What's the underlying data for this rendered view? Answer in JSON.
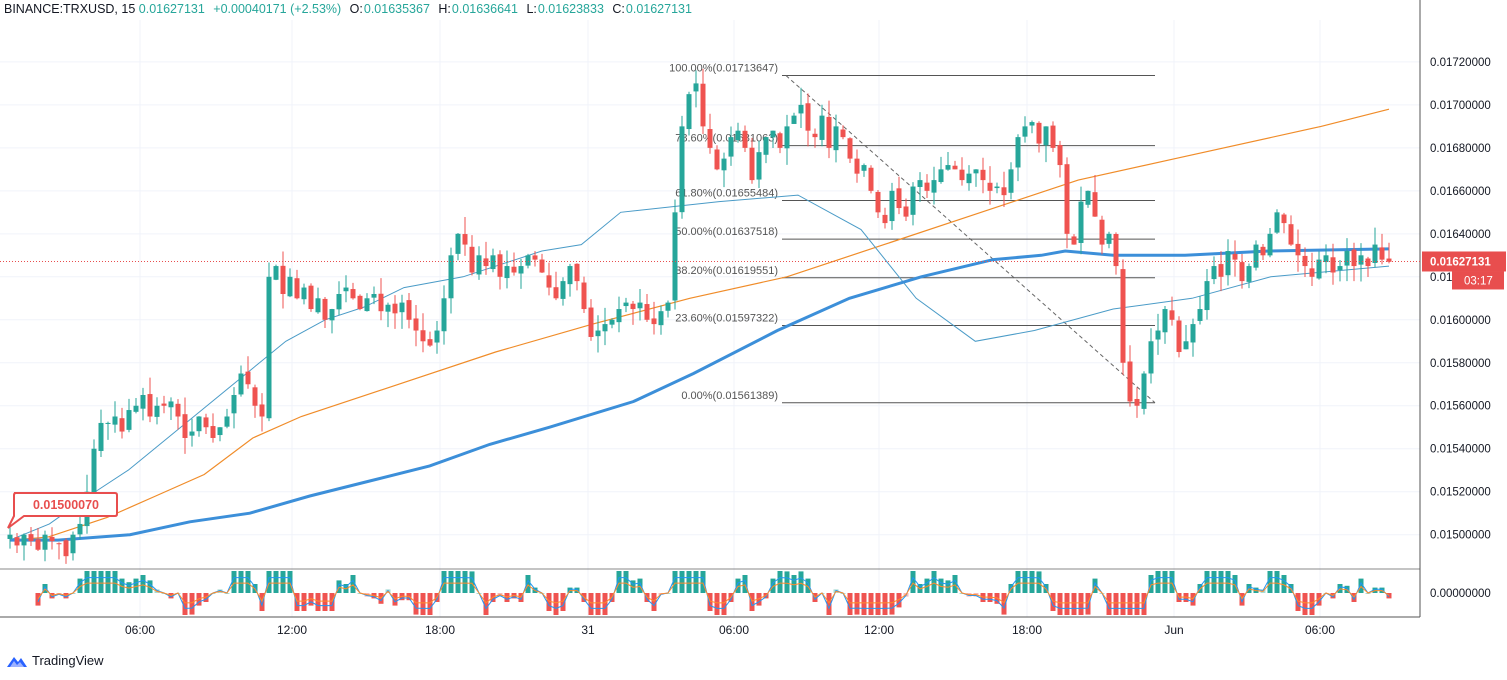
{
  "header": {
    "symbol": "BINANCE:TRXUSD, 15",
    "price": "0.01627131",
    "change": "+0.00040171 (+2.53%)",
    "open_label": "O:",
    "open": "0.01635367",
    "high_label": "H:",
    "high": "0.01636641",
    "low_label": "L:",
    "low": "0.01623833",
    "close_label": "C:",
    "close": "0.01627131"
  },
  "brand": {
    "name": "TradingView"
  },
  "colors": {
    "up": "#26a69a",
    "down": "#ef5350",
    "ma_fast": "#4a9bc7",
    "ma_slow": "#f08c29",
    "ma_long": "#3c8fd9",
    "price_label": "#e84e4e",
    "macd_line": "#2196f3",
    "signal_line": "#ff8a2b"
  },
  "chart_data": {
    "type": "candlestick",
    "x_tick_labels": [
      "06:00",
      "12:00",
      "18:00",
      "31",
      "06:00",
      "12:00",
      "18:00",
      "Jun",
      "06:00"
    ],
    "y_tick_labels": [
      "0.01720000",
      "0.01700000",
      "0.01680000",
      "0.01660000",
      "0.01640000",
      "0.01620000",
      "0.01600000",
      "0.01580000",
      "0.01560000",
      "0.01540000",
      "0.01520000",
      "0.01500000"
    ],
    "y_ticks": [
      0.0172,
      0.017,
      0.0168,
      0.0166,
      0.0164,
      0.0162,
      0.016,
      0.0158,
      0.0156,
      0.0154,
      0.0152,
      0.015
    ],
    "ylim": [
      0.014845,
      0.017395
    ],
    "macd_tick_label": "0.00000000",
    "current_price_label": "0.01627131",
    "countdown": "03:17",
    "start_price_label": "0.01500070",
    "fib_levels": [
      {
        "label": "100.00%(0.01713647)",
        "price": 0.01713647
      },
      {
        "label": "78.60%(0.01681063)",
        "price": 0.01681063
      },
      {
        "label": "61.80%(0.01655484)",
        "price": 0.01655484
      },
      {
        "label": "50.00%(0.01637518)",
        "price": 0.01637518
      },
      {
        "label": "38.20%(0.01619551)",
        "price": 0.01619551
      },
      {
        "label": "23.60%(0.01597322)",
        "price": 0.01597322
      },
      {
        "label": "0.00%(0.01561389)",
        "price": 0.01561389
      }
    ],
    "price_path": [
      0.015,
      0.01495,
      0.015,
      0.01497,
      0.01493,
      0.015,
      0.01497,
      0.01496,
      0.0149,
      0.015,
      0.01505,
      0.0152,
      0.0154,
      0.01552,
      0.01552,
      0.01555,
      0.01548,
      0.01558,
      0.0156,
      0.01565,
      0.01555,
      0.0156,
      0.0156,
      0.01562,
      0.01555,
      0.01545,
      0.01548,
      0.01555,
      0.0155,
      0.01545,
      0.0155,
      0.01555,
      0.01565,
      0.01575,
      0.0157,
      0.0156,
      0.01555,
      0.0162,
      0.01625,
      0.01612,
      0.0162,
      0.0161,
      0.01615,
      0.01605,
      0.0161,
      0.016,
      0.01605,
      0.01612,
      0.01615,
      0.0161,
      0.01605,
      0.0161,
      0.01612,
      0.01604,
      0.01607,
      0.01603,
      0.01608,
      0.016,
      0.01595,
      0.0159,
      0.01588,
      0.01595,
      0.0161,
      0.0163,
      0.0164,
      0.01635,
      0.01622,
      0.0163,
      0.01625,
      0.0163,
      0.0162,
      0.01625,
      0.01622,
      0.01625,
      0.0163,
      0.01628,
      0.01622,
      0.01615,
      0.0161,
      0.01618,
      0.01625,
      0.01618,
      0.01605,
      0.01592,
      0.01595,
      0.01598,
      0.016,
      0.01605,
      0.01608,
      0.01605,
      0.01608,
      0.016,
      0.01598,
      0.01604,
      0.01608,
      0.0165,
      0.0169,
      0.01705,
      0.0171,
      0.0169,
      0.0168,
      0.0167,
      0.01675,
      0.01685,
      0.01688,
      0.0168,
      0.01665,
      0.01678,
      0.01685,
      0.01688,
      0.0168,
      0.0169,
      0.01695,
      0.017,
      0.01688,
      0.01685,
      0.01695,
      0.0168,
      0.0169,
      0.01685,
      0.01675,
      0.01668,
      0.01672,
      0.0166,
      0.0165,
      0.01645,
      0.0166,
      0.01652,
      0.01648,
      0.01662,
      0.01665,
      0.0166,
      0.01665,
      0.0167,
      0.01672,
      0.0167,
      0.01665,
      0.01668,
      0.0167,
      0.01665,
      0.0166,
      0.01662,
      0.01658,
      0.0167,
      0.01685,
      0.0169,
      0.01692,
      0.01682,
      0.0169,
      0.0168,
      0.01672,
      0.0164,
      0.01635,
      0.01655,
      0.0166,
      0.01648,
      0.01635,
      0.0164,
      0.01625,
      0.0158,
      0.01562,
      0.0156,
      0.01575,
      0.0159,
      0.01595,
      0.01605,
      0.016,
      0.01585,
      0.0159,
      0.01598,
      0.01605,
      0.01618,
      0.01625,
      0.0162,
      0.01632,
      0.01628,
      0.01618,
      0.01625,
      0.01635,
      0.0163,
      0.0164,
      0.0165,
      0.01645,
      0.01635,
      0.0163,
      0.01625,
      0.0162,
      0.01628,
      0.0163,
      0.01622,
      0.01625,
      0.01632,
      0.01625,
      0.0163,
      0.01625,
      0.01635,
      0.01628,
      0.01627
    ],
    "ma_fast": [
      [
        0,
        0.014975
      ],
      [
        20,
        0.01505
      ],
      [
        40,
        0.01518
      ],
      [
        60,
        0.0153
      ],
      [
        80,
        0.01545
      ],
      [
        100,
        0.0156
      ],
      [
        120,
        0.01575
      ],
      [
        140,
        0.0159
      ],
      [
        160,
        0.016
      ],
      [
        180,
        0.01606
      ],
      [
        200,
        0.01615
      ],
      [
        230,
        0.0162
      ],
      [
        270,
        0.01632
      ],
      [
        290,
        0.01635
      ],
      [
        310,
        0.0165
      ],
      [
        360,
        0.01655
      ],
      [
        400,
        0.01658
      ],
      [
        432,
        0.01642
      ],
      [
        460,
        0.0161
      ],
      [
        490,
        0.0159
      ],
      [
        520,
        0.01595
      ],
      [
        560,
        0.01605
      ],
      [
        600,
        0.0161
      ],
      [
        640,
        0.0162
      ],
      [
        700,
        0.01625
      ]
    ],
    "ma_slow": [
      [
        0,
        0.014975
      ],
      [
        30,
        0.014985
      ],
      [
        40,
        0.01499
      ],
      [
        100,
        0.01508
      ],
      [
        150,
        0.01518
      ],
      [
        200,
        0.01528
      ],
      [
        250,
        0.01545
      ],
      [
        300,
        0.01555
      ],
      [
        400,
        0.0157
      ],
      [
        500,
        0.01585
      ],
      [
        600,
        0.01598
      ],
      [
        700,
        0.0161
      ],
      [
        800,
        0.0162
      ],
      [
        900,
        0.01635
      ],
      [
        1000,
        0.0165
      ],
      [
        1100,
        0.01665
      ],
      [
        1200,
        0.01675
      ],
      [
        1350,
        0.0169
      ],
      [
        1420,
        0.01698
      ]
    ],
    "ma_long": [
      [
        0,
        0.014975
      ],
      [
        40,
        0.014975
      ],
      [
        100,
        0.015
      ],
      [
        150,
        0.01506
      ],
      [
        200,
        0.0151
      ],
      [
        250,
        0.01518
      ],
      [
        300,
        0.01525
      ],
      [
        350,
        0.01532
      ],
      [
        400,
        0.01542
      ],
      [
        450,
        0.0155
      ],
      [
        520,
        0.01562
      ],
      [
        570,
        0.01575
      ],
      [
        640,
        0.01595
      ],
      [
        700,
        0.0161
      ],
      [
        760,
        0.0162
      ],
      [
        820,
        0.01628
      ],
      [
        860,
        0.0163
      ],
      [
        880,
        0.01632
      ],
      [
        920,
        0.0163
      ],
      [
        980,
        0.0163
      ],
      [
        1050,
        0.01632
      ],
      [
        1150,
        0.01633
      ]
    ]
  }
}
